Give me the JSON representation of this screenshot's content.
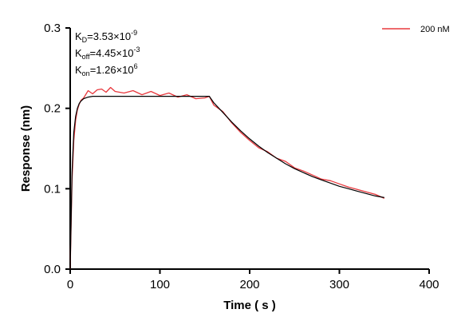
{
  "chart_data": {
    "type": "line",
    "xlabel": "Time ( s )",
    "ylabel": "Response (nm)",
    "xlim": [
      0,
      400
    ],
    "ylim": [
      0.0,
      0.3
    ],
    "x_ticks": [
      0,
      100,
      200,
      300,
      400
    ],
    "y_ticks": [
      0.0,
      0.1,
      0.2,
      0.3
    ],
    "x_tick_labels": [
      "0",
      "100",
      "200",
      "300",
      "400"
    ],
    "y_tick_labels": [
      "0.0",
      "0.1",
      "0.2",
      "0.3"
    ],
    "grid": false,
    "legend_position": "top-right",
    "annotations": {
      "kd": {
        "base": "K",
        "sub": "D",
        "value": "=3.53×10",
        "exp": "-9"
      },
      "koff": {
        "base": "K",
        "sub": "off",
        "value": "=4.45×10",
        "exp": "-3"
      },
      "kon": {
        "base": "K",
        "sub": "on",
        "value": "=1.26×10",
        "exp": "6"
      }
    },
    "series": [
      {
        "name": "200 nM",
        "color": "#e8383d",
        "x": [
          0,
          2,
          4,
          6,
          8,
          10,
          12,
          15,
          20,
          25,
          30,
          35,
          40,
          45,
          50,
          60,
          70,
          80,
          90,
          100,
          110,
          120,
          130,
          140,
          150,
          155,
          160,
          170,
          180,
          190,
          200,
          210,
          220,
          230,
          240,
          250,
          260,
          270,
          280,
          290,
          300,
          310,
          320,
          330,
          340,
          350
        ],
        "y": [
          0.0,
          0.11,
          0.16,
          0.185,
          0.198,
          0.205,
          0.21,
          0.213,
          0.222,
          0.218,
          0.223,
          0.224,
          0.22,
          0.226,
          0.221,
          0.219,
          0.222,
          0.217,
          0.221,
          0.216,
          0.219,
          0.214,
          0.217,
          0.212,
          0.213,
          0.215,
          0.204,
          0.196,
          0.182,
          0.17,
          0.16,
          0.151,
          0.146,
          0.138,
          0.134,
          0.126,
          0.122,
          0.117,
          0.112,
          0.11,
          0.106,
          0.102,
          0.099,
          0.096,
          0.093,
          0.088
        ]
      },
      {
        "name": "",
        "color": "#000000",
        "x": [
          0,
          2,
          4,
          6,
          8,
          10,
          12,
          15,
          20,
          25,
          30,
          40,
          60,
          80,
          100,
          120,
          140,
          150,
          155,
          160,
          170,
          180,
          190,
          200,
          210,
          220,
          230,
          240,
          250,
          260,
          270,
          280,
          290,
          300,
          310,
          320,
          330,
          340,
          350
        ],
        "y": [
          0.0,
          0.12,
          0.17,
          0.19,
          0.2,
          0.206,
          0.209,
          0.212,
          0.214,
          0.215,
          0.215,
          0.215,
          0.215,
          0.215,
          0.215,
          0.215,
          0.215,
          0.215,
          0.215,
          0.207,
          0.195,
          0.183,
          0.172,
          0.162,
          0.153,
          0.145,
          0.138,
          0.131,
          0.125,
          0.12,
          0.115,
          0.111,
          0.107,
          0.103,
          0.1,
          0.097,
          0.094,
          0.091,
          0.089
        ]
      }
    ]
  }
}
